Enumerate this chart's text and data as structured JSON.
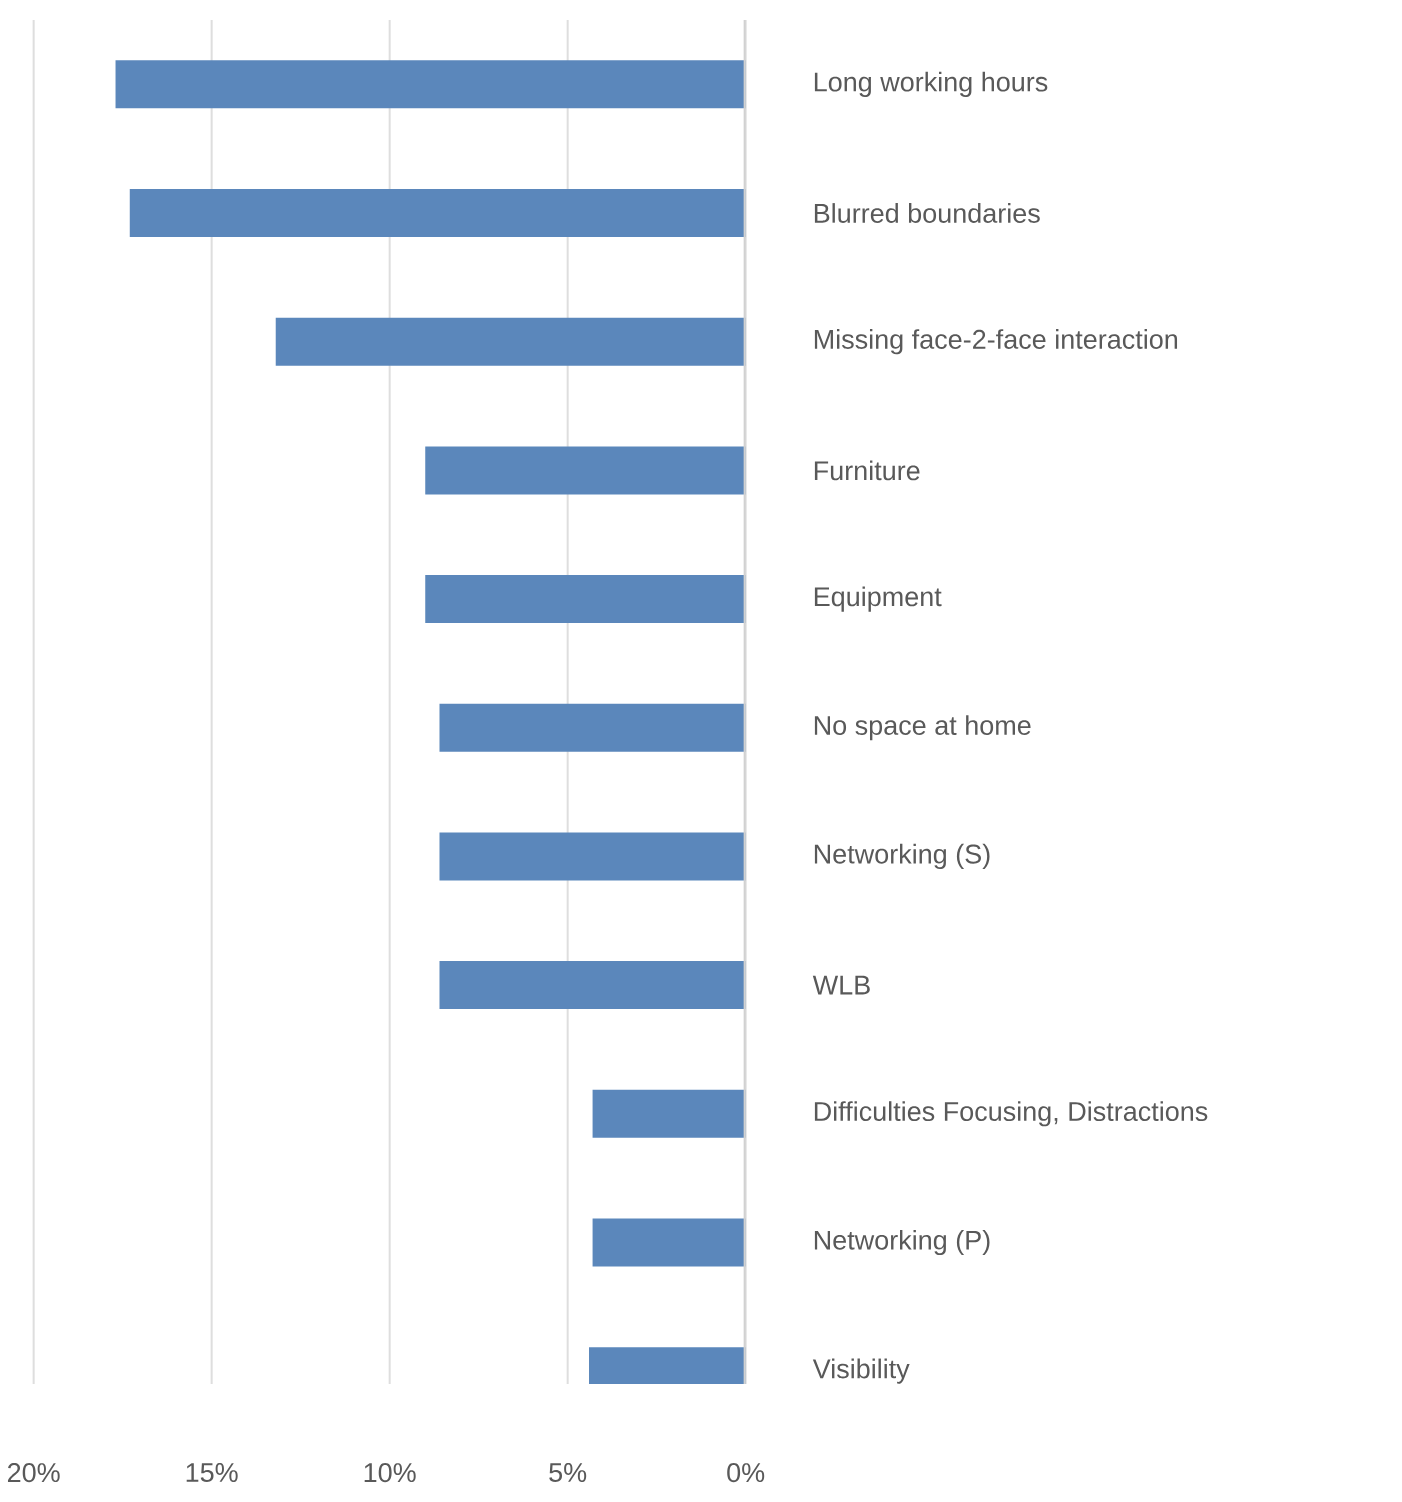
{
  "chart_data": {
    "type": "bar",
    "orientation": "horizontal",
    "categories": [
      "Long working hours",
      "Blurred boundaries",
      "Missing face-2-face interaction",
      "Furniture",
      "Equipment",
      "No space at home",
      "Networking (S)",
      "WLB",
      "Difficulties Focusing, Distractions",
      "Networking (P)",
      "Visibility"
    ],
    "values": [
      17.7,
      17.3,
      13.2,
      9.0,
      9.0,
      8.6,
      8.6,
      8.6,
      4.3,
      4.3,
      4.4
    ],
    "color": "#5b87bb",
    "xlim": [
      20,
      0
    ],
    "xticks": [
      {
        "value": 20,
        "label": "20%"
      },
      {
        "value": 15,
        "label": "15%"
      },
      {
        "value": 10,
        "label": "10%"
      },
      {
        "value": 5,
        "label": "5%"
      },
      {
        "value": 0,
        "label": "0%"
      }
    ],
    "grid": "x"
  }
}
